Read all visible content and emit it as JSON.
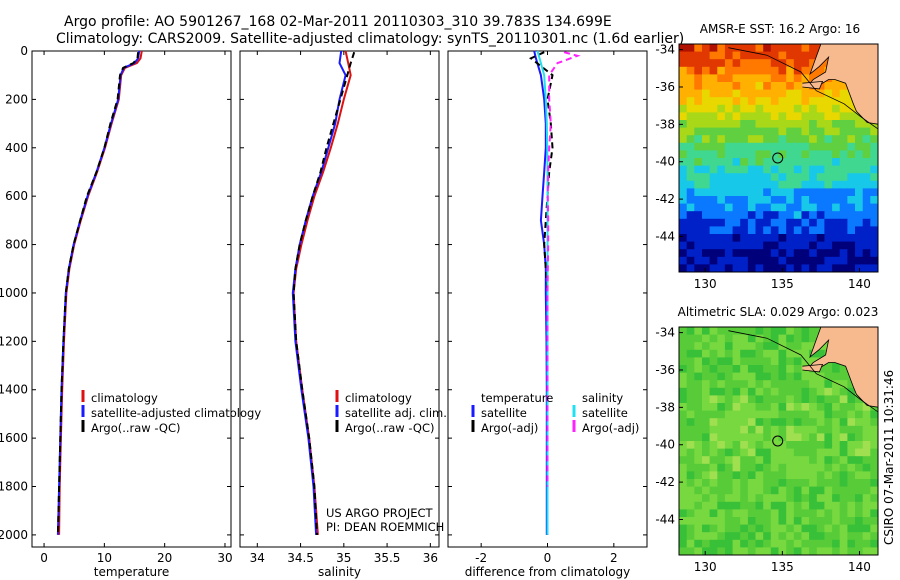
{
  "header": {
    "line1": "Argo profile: AO 5901267_168 02-Mar-2011 20110303_310 39.783S 134.699E",
    "line2": "Climatology: CARS2009. Satellite-adjusted climatology: synTS_20110301.nc (1.6d earlier)"
  },
  "colors": {
    "climatology": "#dd1111",
    "satellite": "#1a1aff",
    "argo": "#000000",
    "sal_satellite": "#22e0f0",
    "sal_argo": "#ff22ff",
    "land": "#f7b98e"
  },
  "chart_data": [
    {
      "type": "line",
      "id": "temperature",
      "xlabel": "temperature",
      "ylabel": "",
      "xlim": [
        -2,
        31
      ],
      "ylim": [
        2050,
        0
      ],
      "xticks": [
        0,
        10,
        20,
        30
      ],
      "yticks": [
        0,
        200,
        400,
        600,
        800,
        1000,
        1200,
        1400,
        1600,
        1800,
        2000
      ],
      "legend": [
        "climatology",
        "satellite-adjusted climatology",
        "Argo(..raw -QC)"
      ],
      "series": [
        {
          "name": "climatology",
          "color": "climatology",
          "dash": "",
          "x": [
            16.2,
            16.0,
            15.4,
            13.4,
            12.8,
            12.4,
            11.2,
            10.1,
            8.8,
            7.3,
            6.1,
            5.0,
            4.2,
            3.7,
            3.3,
            3.0,
            2.8,
            2.6,
            2.5
          ],
          "y": [
            0,
            30,
            50,
            70,
            100,
            200,
            300,
            400,
            500,
            600,
            700,
            800,
            900,
            1000,
            1200,
            1400,
            1600,
            1800,
            2000
          ]
        },
        {
          "name": "satellite-adjusted climatology",
          "color": "satellite",
          "dash": "",
          "x": [
            15.8,
            15.6,
            15.0,
            13.2,
            12.7,
            12.3,
            11.1,
            10.0,
            8.7,
            7.2,
            6.0,
            4.9,
            4.1,
            3.6,
            3.2,
            2.9,
            2.7,
            2.5,
            2.3
          ],
          "y": [
            0,
            30,
            50,
            70,
            100,
            200,
            300,
            400,
            500,
            600,
            700,
            800,
            900,
            1000,
            1200,
            1400,
            1600,
            1800,
            2000
          ]
        },
        {
          "name": "Argo(..raw -QC)",
          "color": "argo",
          "dash": "6,4",
          "x": [
            15.6,
            15.5,
            14.8,
            13.1,
            12.6,
            12.2,
            11.0,
            10.0,
            8.7,
            7.1,
            6.0,
            4.9,
            4.1,
            3.6,
            3.2,
            2.9,
            2.7,
            2.5,
            2.3
          ],
          "y": [
            5,
            30,
            50,
            70,
            100,
            200,
            300,
            400,
            500,
            600,
            700,
            800,
            900,
            1000,
            1200,
            1400,
            1600,
            1800,
            2000
          ]
        }
      ]
    },
    {
      "type": "line",
      "id": "salinity",
      "xlabel": "salinity",
      "ylabel": "",
      "xlim": [
        33.8,
        36.1
      ],
      "ylim": [
        2050,
        0
      ],
      "xticks": [
        34,
        34.5,
        35,
        35.5,
        36
      ],
      "xtick_labels": [
        "34",
        "34.5",
        "35",
        "35.5",
        "36"
      ],
      "yticks": [
        0,
        200,
        400,
        600,
        800,
        1000,
        1200,
        1400,
        1600,
        1800,
        2000
      ],
      "legend": [
        "climatology",
        "satellite adj. clim.",
        "Argo(..raw -QC)"
      ],
      "annotation": [
        "US ARGO PROJECT",
        "PI: DEAN ROEMMICH"
      ],
      "series": [
        {
          "name": "climatology",
          "color": "climatology",
          "dash": "",
          "x": [
            35.02,
            35.05,
            35.08,
            35.0,
            34.93,
            34.85,
            34.76,
            34.66,
            34.58,
            34.51,
            34.45,
            34.42,
            34.45,
            34.52,
            34.6,
            34.66,
            34.7
          ],
          "y": [
            0,
            50,
            100,
            200,
            300,
            400,
            500,
            600,
            700,
            800,
            900,
            1000,
            1200,
            1400,
            1600,
            1800,
            2000
          ]
        },
        {
          "name": "satellite adj. clim.",
          "color": "satellite",
          "dash": "",
          "x": [
            34.97,
            34.95,
            35.02,
            34.95,
            34.9,
            34.82,
            34.74,
            34.64,
            34.56,
            34.49,
            34.44,
            34.41,
            34.44,
            34.51,
            34.59,
            34.65,
            34.68
          ],
          "y": [
            0,
            50,
            100,
            200,
            300,
            400,
            500,
            600,
            700,
            800,
            900,
            1000,
            1200,
            1400,
            1600,
            1800,
            2000
          ]
        },
        {
          "name": "Argo(..raw -QC)",
          "color": "argo",
          "dash": "6,4",
          "x": [
            35.12,
            35.08,
            35.04,
            34.96,
            34.88,
            34.8,
            34.73,
            34.64,
            34.56,
            34.49,
            34.44,
            34.42,
            34.45,
            34.52,
            34.6,
            34.66,
            34.69
          ],
          "y": [
            5,
            50,
            100,
            200,
            300,
            400,
            500,
            600,
            700,
            800,
            900,
            1000,
            1200,
            1400,
            1600,
            1800,
            2000
          ]
        }
      ]
    },
    {
      "type": "line",
      "id": "difference",
      "xlabel": "difference from climatology",
      "ylabel": "",
      "xlim": [
        -3,
        3
      ],
      "ylim": [
        2050,
        0
      ],
      "xticks": [
        -2,
        0,
        2
      ],
      "yticks": [
        0,
        200,
        400,
        600,
        800,
        1000,
        1200,
        1400,
        1600,
        1800,
        2000
      ],
      "legend_headers": [
        "temperature",
        "salinity"
      ],
      "legend": [
        "satellite",
        "Argo(-adj)",
        "satellite",
        "Argo(-adj)"
      ],
      "series": [
        {
          "name": "temperature satellite",
          "color": "satellite",
          "dash": "",
          "x": [
            -0.4,
            -0.35,
            -0.2,
            -0.1,
            -0.05,
            -0.05,
            -0.1,
            -0.15,
            -0.2,
            -0.1,
            -0.05,
            -0.05,
            -0.03,
            -0.02,
            -0.02,
            -0.02,
            -0.02
          ],
          "y": [
            0,
            30,
            100,
            200,
            300,
            400,
            500,
            600,
            700,
            800,
            900,
            1000,
            1200,
            1400,
            1600,
            1800,
            2000
          ]
        },
        {
          "name": "temperature Argo(-adj)",
          "color": "argo",
          "dash": "6,4",
          "x": [
            -0.1,
            -0.5,
            0.15,
            0.0,
            0.1,
            0.15,
            0.05,
            0.0,
            -0.05,
            -0.1,
            -0.05,
            0.0,
            0.0,
            0.0,
            0.0,
            0.0,
            0.0
          ],
          "y": [
            5,
            30,
            100,
            200,
            300,
            400,
            500,
            600,
            700,
            800,
            900,
            1000,
            1200,
            1400,
            1600,
            1800,
            2000
          ]
        },
        {
          "name": "salinity satellite",
          "color": "sal_satellite",
          "dash": "",
          "x": [
            -0.3,
            -0.2,
            -0.1,
            -0.05,
            -0.02,
            -0.01,
            0.0,
            0.0,
            0.0,
            0.0,
            0.0,
            0.0,
            0.0,
            0.0,
            0.0,
            0.0,
            0.0
          ],
          "y": [
            0,
            50,
            100,
            200,
            300,
            400,
            500,
            600,
            700,
            800,
            900,
            1000,
            1200,
            1400,
            1600,
            1800,
            2000
          ]
        },
        {
          "name": "salinity Argo(-adj)",
          "color": "sal_argo",
          "dash": "6,4",
          "x": [
            0.5,
            0.9,
            0.3,
            0.05,
            0.05,
            0.1,
            0.05,
            0.02,
            0.01,
            0.02,
            0.02,
            0.01,
            0.0,
            0.0,
            0.0,
            0.0,
            0.0
          ],
          "y": [
            5,
            20,
            50,
            100,
            200,
            300,
            400,
            500,
            600,
            700,
            800,
            900,
            1000,
            1200,
            1400,
            1600,
            1800
          ]
        }
      ]
    },
    {
      "type": "heatmap",
      "id": "sst-map",
      "title": "AMSR-E SST: 16.2 Argo: 16",
      "xlim": [
        128.3,
        141.2
      ],
      "ylim": [
        -45.9,
        -33.7
      ],
      "xticks": [
        130,
        135,
        140
      ],
      "yticks": [
        -34,
        -36,
        -38,
        -40,
        -42,
        -44
      ],
      "profile_location": [
        134.7,
        -39.8
      ],
      "palette": [
        "#00007a",
        "#0020c8",
        "#0a78ff",
        "#18c8e8",
        "#40d890",
        "#60d040",
        "#a8d818",
        "#e8d800",
        "#ffb000",
        "#ff7800",
        "#e03800",
        "#b01000"
      ],
      "rows_by_latitude": [
        {
          "lat": -34,
          "value": 10
        },
        {
          "lat": -35,
          "value": 9.2
        },
        {
          "lat": -36,
          "value": 8
        },
        {
          "lat": -37,
          "value": 7
        },
        {
          "lat": -38,
          "value": 5.8
        },
        {
          "lat": -39,
          "value": 4.8
        },
        {
          "lat": -40,
          "value": 4
        },
        {
          "lat": -41,
          "value": 3.2
        },
        {
          "lat": -42,
          "value": 2.5
        },
        {
          "lat": -43,
          "value": 1.8
        },
        {
          "lat": -44,
          "value": 1
        },
        {
          "lat": -45,
          "value": 0.4
        }
      ]
    },
    {
      "type": "heatmap",
      "id": "sla-map",
      "title": "Altimetric SLA: 0.029 Argo: 0.023",
      "xlim": [
        128.3,
        141.2
      ],
      "ylim": [
        -45.9,
        -33.7
      ],
      "xticks": [
        130,
        135,
        140
      ],
      "yticks": [
        -34,
        -36,
        -38,
        -40,
        -42,
        -44
      ],
      "profile_location": [
        134.7,
        -39.8
      ],
      "palette": [
        "#20b030",
        "#38c038",
        "#58cc38",
        "#78d840",
        "#a0e050",
        "#c8e850"
      ],
      "rows_by_latitude": [
        {
          "lat": -34,
          "value": 2.2
        },
        {
          "lat": -36,
          "value": 2.0
        },
        {
          "lat": -38,
          "value": 2.4
        },
        {
          "lat": -40,
          "value": 2.6
        },
        {
          "lat": -42,
          "value": 2.3
        },
        {
          "lat": -44,
          "value": 2.1
        }
      ]
    }
  ],
  "footer": {
    "credit": "CSIRO 07-Mar-2011 10:31:46"
  }
}
